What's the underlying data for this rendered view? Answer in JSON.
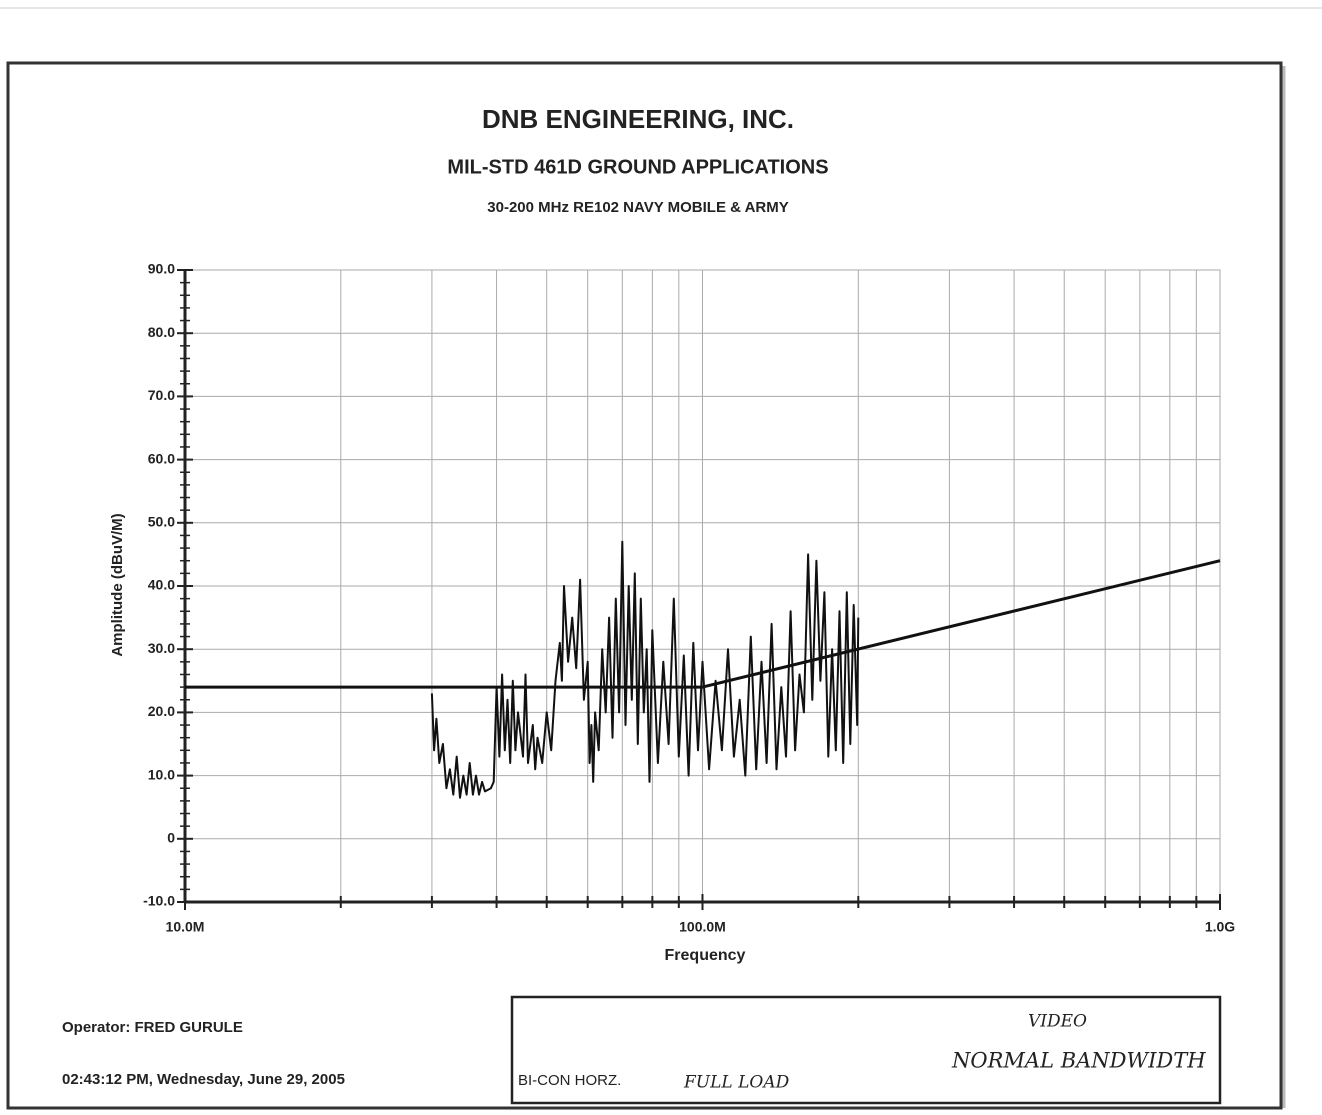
{
  "chart_data": {
    "type": "line",
    "title": "DNB ENGINEERING, INC.",
    "subtitle": "MIL-STD 461D GROUND APPLICATIONS",
    "subtitle2": "30-200 MHz RE102 NAVY MOBILE & ARMY",
    "xlabel": "Frequency",
    "ylabel": "Amplitude (dBuV/M)",
    "xscale": "log",
    "grid": true,
    "xlim": [
      10000000.0,
      1000000000.0
    ],
    "ylim": [
      -10,
      90
    ],
    "xticks": [
      {
        "value": 10000000.0,
        "label": "10.0M"
      },
      {
        "value": 100000000.0,
        "label": "100.0M"
      },
      {
        "value": 1000000000.0,
        "label": "1.0G"
      }
    ],
    "xgrid": [
      20000000.0,
      30000000.0,
      40000000.0,
      50000000.0,
      60000000.0,
      70000000.0,
      80000000.0,
      90000000.0,
      200000000.0,
      300000000.0,
      400000000.0,
      500000000.0,
      600000000.0,
      700000000.0,
      800000000.0,
      900000000.0
    ],
    "yticks": [
      {
        "value": -10,
        "label": "-10.0"
      },
      0,
      {
        "value": 10,
        "label": "10.0"
      },
      {
        "value": 20,
        "label": "20.0"
      },
      {
        "value": 30,
        "label": "30.0"
      },
      {
        "value": 40,
        "label": "40.0"
      },
      {
        "value": 50,
        "label": "50.0"
      },
      {
        "value": 60,
        "label": "60.0"
      },
      {
        "value": 70,
        "label": "70.0"
      },
      {
        "value": 80,
        "label": "80.0"
      },
      {
        "value": 90,
        "label": "90.0"
      }
    ],
    "series": [
      {
        "color": "#111111",
        "x": [
          30000000.0,
          30300000.0,
          30600000.0,
          31000000.0,
          31500000.0,
          32000000.0,
          32500000.0,
          33000000.0,
          33500000.0,
          34000000.0,
          34500000.0,
          35000000.0,
          35500000.0,
          36000000.0,
          36500000.0,
          37000000.0,
          37500000.0,
          38000000.0,
          39000000.0,
          39500000.0,
          40000000.0,
          40500000.0,
          41000000.0,
          41500000.0,
          42000000.0,
          42500000.0,
          43000000.0,
          43500000.0,
          44000000.0,
          45000000.0,
          45500000.0,
          46000000.0,
          47000000.0,
          47500000.0,
          48000000.0,
          49000000.0,
          50000000.0,
          51000000.0,
          52000000.0,
          53000000.0,
          53500000.0,
          54000000.0,
          55000000.0,
          56000000.0,
          57000000.0,
          58000000.0,
          59000000.0,
          60000000.0,
          60500000.0,
          61000000.0,
          61500000.0,
          62000000.0,
          63000000.0,
          64000000.0,
          65000000.0,
          66000000.0,
          67000000.0,
          68000000.0,
          69000000.0,
          70000000.0,
          71000000.0,
          72000000.0,
          73000000.0,
          74000000.0,
          75000000.0,
          76000000.0,
          77000000.0,
          78000000.0,
          79000000.0,
          80000000.0,
          82000000.0,
          84000000.0,
          86000000.0,
          88000000.0,
          90000000.0,
          92000000.0,
          94000000.0,
          96000000.0,
          98000000.0,
          100000000.0,
          103000000.0,
          106000000.0,
          109000000.0,
          112000000.0,
          115000000.0,
          118000000.0,
          121000000.0,
          124000000.0,
          127000000.0,
          130000000.0,
          133000000.0,
          136000000.0,
          139000000.0,
          142000000.0,
          145000000.0,
          148000000.0,
          151000000.0,
          154000000.0,
          157000000.0,
          160000000.0,
          163000000.0,
          166000000.0,
          169000000.0,
          172000000.0,
          175000000.0,
          178000000.0,
          181000000.0,
          184000000.0,
          187000000.0,
          190000000.0,
          193000000.0,
          196000000.0,
          199000000.0,
          200000000.0
        ],
        "values": [
          23,
          14,
          19,
          12,
          15,
          8,
          11,
          7,
          13,
          6.5,
          10,
          7,
          12,
          7,
          10,
          7,
          9,
          7.5,
          8,
          9,
          24,
          13,
          26,
          14,
          22,
          12,
          25,
          14,
          20,
          13,
          26,
          12,
          18,
          11,
          16,
          12,
          20,
          14,
          25,
          31,
          25,
          40,
          28,
          35,
          27,
          41,
          22,
          28,
          12,
          18,
          9,
          20,
          14,
          30,
          20,
          35,
          16,
          38,
          20,
          47,
          18,
          40,
          22,
          42,
          15,
          38,
          20,
          30,
          9,
          33,
          12,
          28,
          15,
          38,
          13,
          29,
          10,
          31,
          14,
          28,
          11,
          25,
          14,
          30,
          13,
          22,
          10,
          32,
          11,
          28,
          12,
          34,
          11,
          24,
          13,
          36,
          14,
          26,
          20,
          45,
          22,
          44,
          25,
          39,
          13,
          30,
          14,
          36,
          12,
          39,
          15,
          37,
          18,
          35
        ]
      },
      {
        "color": "#111111",
        "x": [
          10000000.0,
          100000000.0,
          1000000000.0
        ],
        "values": [
          24,
          24,
          44
        ]
      }
    ],
    "operator": "Operator: FRED GURULE",
    "timestamp": "02:43:12 PM, Wednesday, June 29, 2005",
    "antenna": "BI-CON  HORZ.",
    "note_load": "FULL LOAD",
    "note_video": "VIDEO",
    "note_bandwidth": "NORMAL BANDWIDTH"
  }
}
